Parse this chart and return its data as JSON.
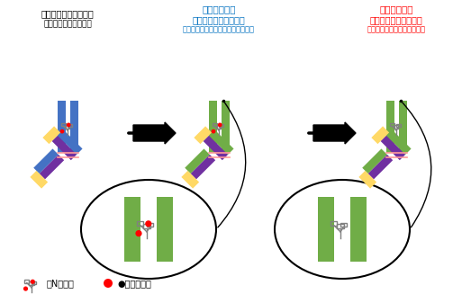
{
  "title": "",
  "bg_color": "#ffffff",
  "label1_line1": "抗ポドカリキシン抗体",
  "label1_line2": "（オリジナルの抗体）",
  "label2_line1": "改変第１段階",
  "label2_line2": "抗ポドカリキシン抗体",
  "label2_line3": "（タンパク質部分を改変した抗体）",
  "label3_line1": "改変第２段階",
  "label3_line2": "抗ポドカリキシン抗体",
  "label3_line3": "（糖鎖部分を改変した抗体）",
  "label2_color": "#0070c0",
  "label3_color": "#ff0000",
  "legend_text1": "：N型糖鎖",
  "legend_text2": "●：フコース",
  "arrow_color": "#000000",
  "antibody1_stem_color": "#4472c4",
  "antibody2_stem_color": "#70ad47",
  "antibody3_stem_color": "#70ad47",
  "arm_purple": "#7030a0",
  "arm_blue": "#4472c4",
  "arm_green": "#70ad47",
  "arm_yellow": "#ffd966",
  "circle_color": "#000000",
  "red_dot_color": "#ff0000",
  "glycan_color": "#808080"
}
